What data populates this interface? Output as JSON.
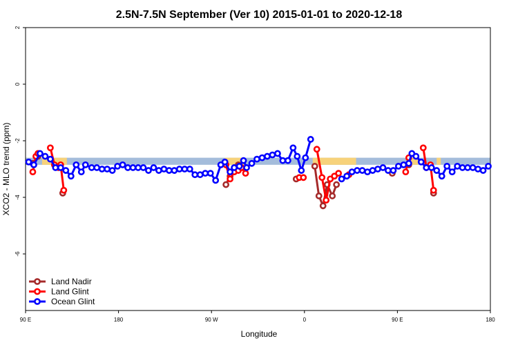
{
  "chart_data": {
    "type": "line",
    "title": "2.5N-7.5N September (Ver 10)   2015-01-01 to 2020-12-18",
    "xlabel": "Longitude",
    "ylabel": "XCO2 - MLO trend (ppm)",
    "xlim": [
      0,
      450
    ],
    "ylim": [
      -8,
      2
    ],
    "xticks": [
      {
        "value": 0,
        "label": "90 E"
      },
      {
        "value": 90,
        "label": "180"
      },
      {
        "value": 180,
        "label": "90 W"
      },
      {
        "value": 270,
        "label": "0"
      },
      {
        "value": 360,
        "label": "90 E"
      },
      {
        "value": 450,
        "label": "180"
      }
    ],
    "yticks": [
      {
        "value": 2,
        "label": "2"
      },
      {
        "value": 0,
        "label": "0"
      },
      {
        "value": -2,
        "label": "-2"
      },
      {
        "value": -4,
        "label": "-4"
      },
      {
        "value": -6,
        "label": "-6"
      }
    ],
    "legend_position": "bottom-left",
    "bands": [
      {
        "name": "blue-band",
        "color": "#a4bcdb",
        "x0": 0,
        "x1": 450,
        "y0": -2.85,
        "y1": -2.6
      },
      {
        "name": "yellow-band",
        "color": "#f7d27b",
        "segments": [
          [
            16,
            40
          ],
          [
            193,
            212
          ],
          [
            278,
            320
          ],
          [
            370,
            380
          ],
          [
            398,
            402
          ]
        ],
        "y0": -2.85,
        "y1": -2.6
      }
    ],
    "series": [
      {
        "name": "Land Nadir",
        "color": "#a52a2a",
        "segments": [
          [
            [
              7,
              -2.8
            ],
            [
              12,
              -2.55
            ]
          ],
          [
            [
              36,
              -3.85
            ]
          ],
          [
            [
              194,
              -3.55
            ],
            [
              198,
              -3.25
            ],
            [
              202,
              -3.05
            ],
            [
              206,
              -2.85
            ],
            [
              209,
              -2.95
            ]
          ],
          [
            [
              262,
              -3.35
            ]
          ],
          [
            [
              280,
              -2.9
            ],
            [
              284,
              -3.95
            ],
            [
              288,
              -4.3
            ],
            [
              292,
              -3.55
            ],
            [
              297,
              -3.95
            ],
            [
              301,
              -3.55
            ]
          ],
          [
            [
              355,
              -3.15
            ]
          ],
          [
            [
              371,
              -2.85
            ]
          ],
          [
            [
              395,
              -3.85
            ]
          ]
        ]
      },
      {
        "name": "Land Glint",
        "color": "#ff0000",
        "segments": [
          [
            [
              7,
              -3.1
            ],
            [
              10,
              -2.55
            ],
            [
              12,
              -2.45
            ]
          ],
          [
            [
              24,
              -2.25
            ],
            [
              28,
              -2.85
            ],
            [
              32,
              -2.95
            ],
            [
              34,
              -2.85
            ],
            [
              37,
              -3.75
            ]
          ],
          [
            [
              194,
              -2.85
            ],
            [
              198,
              -3.35
            ],
            [
              202,
              -3.1
            ],
            [
              206,
              -3.05
            ],
            [
              209,
              -2.95
            ],
            [
              213,
              -3.15
            ]
          ],
          [
            [
              265,
              -3.3
            ],
            [
              269,
              -3.3
            ]
          ],
          [
            [
              282,
              -2.3
            ],
            [
              287,
              -3.3
            ],
            [
              291,
              -4.1
            ],
            [
              295,
              -3.35
            ],
            [
              299,
              -3.25
            ]
          ],
          [
            [
              303,
              -3.15
            ]
          ],
          [
            [
              313,
              -3.2
            ]
          ],
          [
            [
              368,
              -3.1
            ],
            [
              371,
              -2.6
            ]
          ],
          [
            [
              385,
              -2.25
            ],
            [
              388,
              -2.95
            ],
            [
              392,
              -2.85
            ],
            [
              395,
              -3.75
            ]
          ]
        ]
      },
      {
        "name": "Ocean Glint",
        "color": "#0000ff",
        "segments": [
          [
            [
              3,
              -2.75
            ],
            [
              8,
              -2.85
            ],
            [
              14,
              -2.45
            ],
            [
              19,
              -2.55
            ],
            [
              24,
              -2.65
            ],
            [
              29,
              -2.95
            ],
            [
              34,
              -2.95
            ],
            [
              39,
              -3.05
            ],
            [
              44,
              -3.25
            ],
            [
              49,
              -2.85
            ],
            [
              54,
              -3.1
            ],
            [
              58,
              -2.85
            ],
            [
              64,
              -2.95
            ],
            [
              69,
              -2.95
            ],
            [
              74,
              -3.0
            ],
            [
              79,
              -3.0
            ],
            [
              84,
              -3.05
            ],
            [
              89,
              -2.9
            ],
            [
              94,
              -2.85
            ],
            [
              99,
              -2.95
            ],
            [
              104,
              -2.95
            ],
            [
              109,
              -2.95
            ],
            [
              114,
              -2.95
            ],
            [
              119,
              -3.05
            ],
            [
              124,
              -2.95
            ],
            [
              129,
              -3.05
            ],
            [
              134,
              -3.0
            ],
            [
              139,
              -3.05
            ],
            [
              144,
              -3.05
            ],
            [
              149,
              -3.0
            ],
            [
              154,
              -3.0
            ],
            [
              159,
              -3.0
            ],
            [
              164,
              -3.2
            ],
            [
              169,
              -3.2
            ],
            [
              174,
              -3.15
            ],
            [
              179,
              -3.15
            ],
            [
              184,
              -3.4
            ],
            [
              189,
              -2.85
            ],
            [
              193,
              -2.75
            ],
            [
              198,
              -3.1
            ],
            [
              202,
              -2.95
            ],
            [
              207,
              -2.9
            ],
            [
              211,
              -2.7
            ],
            [
              214,
              -2.95
            ],
            [
              219,
              -2.8
            ],
            [
              224,
              -2.65
            ],
            [
              229,
              -2.6
            ],
            [
              234,
              -2.55
            ],
            [
              239,
              -2.5
            ],
            [
              244,
              -2.45
            ],
            [
              249,
              -2.7
            ],
            [
              254,
              -2.7
            ],
            [
              259,
              -2.25
            ],
            [
              263,
              -2.55
            ],
            [
              267,
              -3.05
            ],
            [
              271,
              -2.6
            ],
            [
              276,
              -1.95
            ]
          ],
          [
            [
              306,
              -3.35
            ],
            [
              311,
              -3.25
            ],
            [
              316,
              -3.1
            ],
            [
              321,
              -3.05
            ],
            [
              326,
              -3.05
            ],
            [
              331,
              -3.1
            ],
            [
              336,
              -3.05
            ],
            [
              341,
              -3.0
            ],
            [
              346,
              -2.95
            ],
            [
              351,
              -3.05
            ],
            [
              356,
              -3.05
            ],
            [
              361,
              -2.9
            ],
            [
              366,
              -2.85
            ],
            [
              371,
              -2.8
            ],
            [
              374,
              -2.45
            ],
            [
              378,
              -2.55
            ],
            [
              383,
              -2.75
            ],
            [
              388,
              -2.95
            ],
            [
              393,
              -2.95
            ],
            [
              398,
              -3.05
            ],
            [
              403,
              -3.25
            ],
            [
              408,
              -2.9
            ],
            [
              413,
              -3.1
            ],
            [
              418,
              -2.9
            ],
            [
              423,
              -2.95
            ],
            [
              428,
              -2.95
            ],
            [
              433,
              -2.95
            ],
            [
              438,
              -3.0
            ],
            [
              443,
              -3.05
            ],
            [
              448,
              -2.9
            ]
          ]
        ]
      }
    ]
  }
}
